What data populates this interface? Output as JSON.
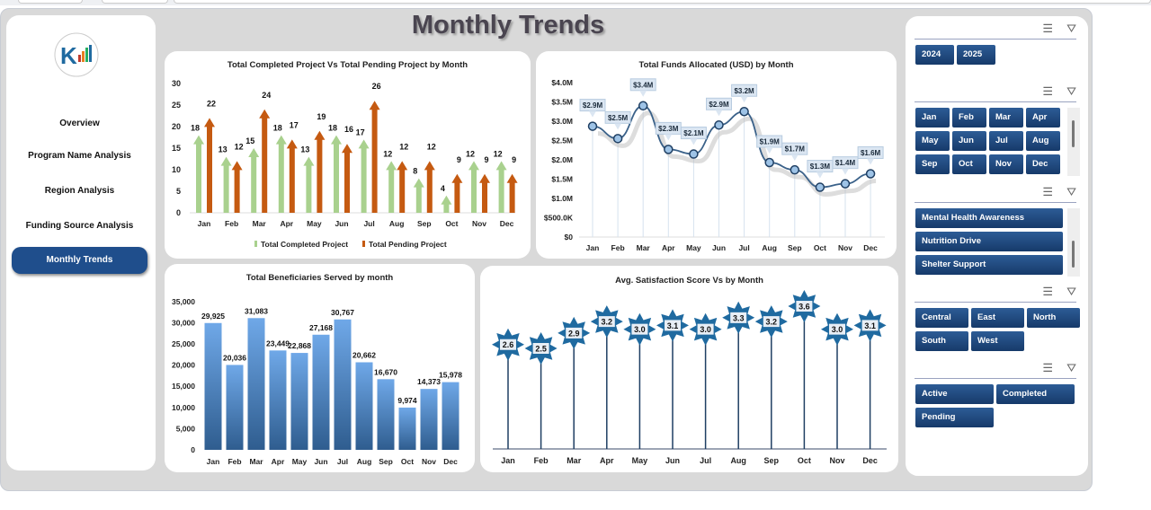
{
  "title": "Monthly Trends",
  "nav": {
    "items": [
      "Overview",
      "Program Name Analysis",
      "Region Analysis",
      "Funding Source Analysis",
      "Monthly Trends"
    ],
    "active": "Monthly Trends"
  },
  "colors": {
    "completed": "#a9d18e",
    "pending": "#c55a11",
    "accent": "#1f4e8c",
    "funds_line": "#3a6189",
    "bars": "#5b8fd0",
    "lollipop": "#1f6aa0"
  },
  "slicers": {
    "years": [
      "2024",
      "2025"
    ],
    "months": [
      "Jan",
      "Feb",
      "Mar",
      "Apr",
      "May",
      "Jun",
      "Jul",
      "Aug",
      "Sep",
      "Oct",
      "Nov",
      "Dec"
    ],
    "programs": [
      "Mental Health Awareness",
      "Nutrition Drive",
      "Shelter Support"
    ],
    "regions": [
      "Central",
      "East",
      "North",
      "South",
      "West"
    ],
    "statuses": [
      "Active",
      "Completed",
      "Pending"
    ],
    "icons": [
      "multi-select-icon",
      "clear-filter-icon"
    ]
  },
  "chart_data": [
    {
      "type": "bar",
      "title": "Total Completed Project Vs Total Pending Project by Month",
      "categories": [
        "Jan",
        "Feb",
        "Mar",
        "Apr",
        "May",
        "Jun",
        "Jul",
        "Aug",
        "Sep",
        "Oct",
        "Nov",
        "Dec"
      ],
      "series": [
        {
          "name": "Total Completed Project",
          "values": [
            18,
            13,
            15,
            18,
            13,
            18,
            17,
            12,
            8,
            4,
            12,
            12
          ]
        },
        {
          "name": "Total Pending Project",
          "values": [
            22,
            12,
            24,
            17,
            19,
            16,
            26,
            12,
            12,
            9,
            9,
            9
          ]
        }
      ],
      "ylim": [
        0,
        30
      ],
      "yticks": [
        "0",
        "5",
        "10",
        "15",
        "20",
        "25",
        "30"
      ],
      "legend": "bottom"
    },
    {
      "type": "line",
      "title": "Total Funds Allocated (USD) by Month",
      "categories": [
        "Jan",
        "Feb",
        "Mar",
        "Apr",
        "May",
        "Jun",
        "Jul",
        "Aug",
        "Sep",
        "Oct",
        "Nov",
        "Dec"
      ],
      "values": [
        2.87,
        2.55,
        3.4,
        2.27,
        2.15,
        2.9,
        3.25,
        1.93,
        1.74,
        1.29,
        1.38,
        1.64
      ],
      "labels": [
        "$2.9M",
        "$2.5M",
        "$3.4M",
        "$2.3M",
        "$2.1M",
        "$2.9M",
        "$3.2M",
        "$1.9M",
        "$1.7M",
        "$1.3M",
        "$1.4M",
        "$1.6M"
      ],
      "ylim": [
        0,
        4.0
      ],
      "yticks": [
        "$0",
        "$500.0K",
        "$1.0M",
        "$1.5M",
        "$2.0M",
        "$2.5M",
        "$3.0M",
        "$3.5M",
        "$4.0M"
      ],
      "unit": "USD millions"
    },
    {
      "type": "bar",
      "title": "Total Beneficiaries Served by month",
      "categories": [
        "Jan",
        "Feb",
        "Mar",
        "Apr",
        "May",
        "Jun",
        "Jul",
        "Aug",
        "Sep",
        "Oct",
        "Nov",
        "Dec"
      ],
      "values": [
        29925,
        20036,
        31083,
        23449,
        22868,
        27168,
        30767,
        20662,
        16670,
        9974,
        14373,
        15978
      ],
      "labels": [
        "29,925",
        "20,036",
        "31,083",
        "23,449",
        "22,868",
        "27,168",
        "30,767",
        "20,662",
        "16,670",
        "9,974",
        "14,373",
        "15,978"
      ],
      "ylim": [
        0,
        35000
      ],
      "yticks": [
        "0",
        "5,000",
        "10,000",
        "15,000",
        "20,000",
        "25,000",
        "30,000",
        "35,000"
      ]
    },
    {
      "type": "line",
      "title": "Avg. Satisfaction Score Vs  by Month",
      "categories": [
        "Jan",
        "Feb",
        "Mar",
        "Apr",
        "May",
        "Jun",
        "Jul",
        "Aug",
        "Sep",
        "Oct",
        "Nov",
        "Dec"
      ],
      "values": [
        2.6,
        2.5,
        2.9,
        3.2,
        3.0,
        3.1,
        3.0,
        3.3,
        3.2,
        3.6,
        3.0,
        3.1
      ],
      "labels": [
        "2.6",
        "2.5",
        "2.9",
        "3.2",
        "3.0",
        "3.1",
        "3.0",
        "3.3",
        "3.2",
        "3.6",
        "3.0",
        "3.1"
      ]
    }
  ]
}
